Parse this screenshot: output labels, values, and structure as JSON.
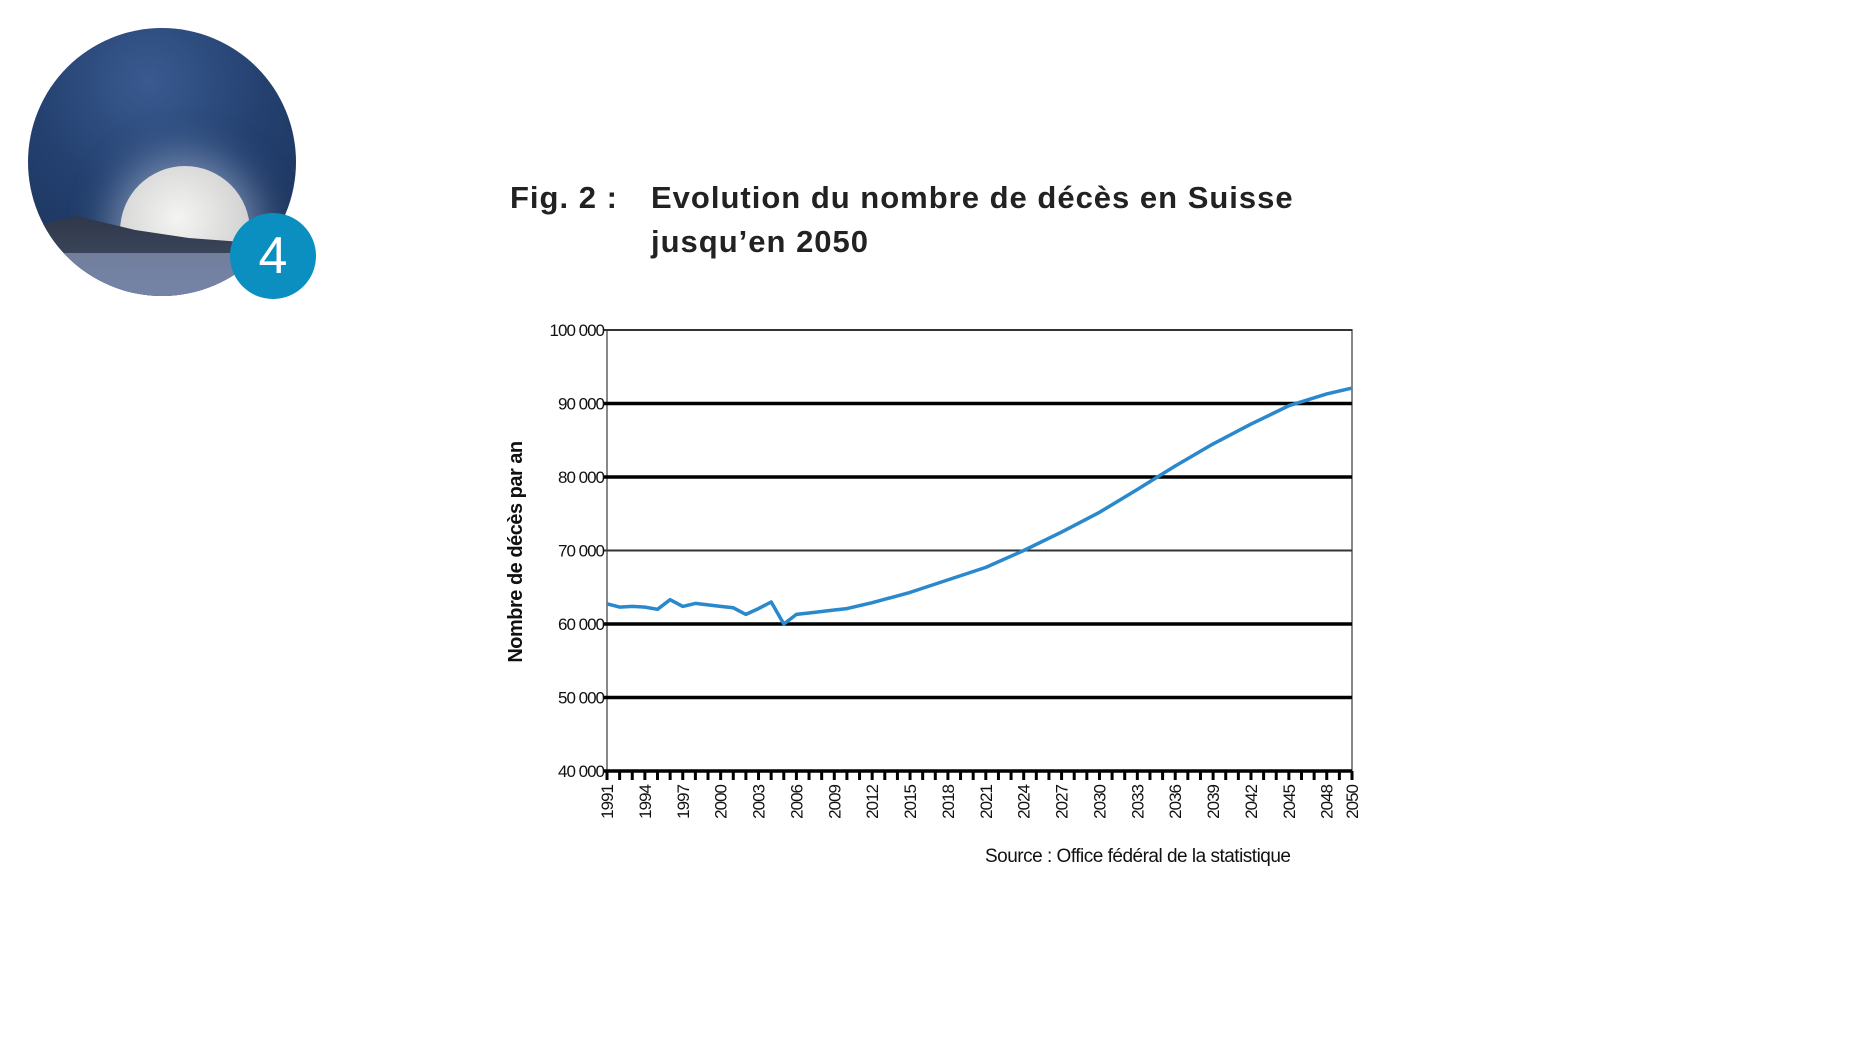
{
  "badge": {
    "number": "4",
    "color": "#0a8fc0"
  },
  "figure": {
    "label": "Fig. 2 :",
    "title_line1": "Evolution du nombre de décès en Suisse",
    "title_line2": "jusqu’en 2050"
  },
  "source": "Source : Office fédéral de la statistique",
  "chart_data": {
    "type": "line",
    "title": "Evolution du nombre de décès en Suisse jusqu’en 2050",
    "xlabel": "",
    "ylabel": "Nombre de décès par an",
    "ylim": [
      40000,
      100000
    ],
    "xlim": [
      1991,
      2050
    ],
    "yticks": [
      "40 000",
      "50 000",
      "60 000",
      "70 000",
      "80 000",
      "90 000",
      "100 000"
    ],
    "xtick_labels": [
      "1991",
      "1994",
      "1997",
      "2000",
      "2003",
      "2006",
      "2009",
      "2012",
      "2015",
      "2018",
      "2021",
      "2024",
      "2027",
      "2030",
      "2033",
      "2036",
      "2039",
      "2042",
      "2045",
      "2048",
      "2050"
    ],
    "grid": true,
    "line_color": "#2a88cc",
    "x": [
      1991,
      1992,
      1993,
      1994,
      1995,
      1996,
      1997,
      1998,
      1999,
      2000,
      2001,
      2002,
      2003,
      2004,
      2005,
      2006,
      2007,
      2008,
      2009,
      2010,
      2012,
      2015,
      2018,
      2021,
      2024,
      2027,
      2030,
      2033,
      2036,
      2039,
      2042,
      2045,
      2048,
      2050
    ],
    "values": [
      62750,
      62300,
      62400,
      62300,
      62000,
      63300,
      62400,
      62800,
      62600,
      62400,
      62200,
      61300,
      62100,
      63000,
      60000,
      61300,
      61500,
      61700,
      61900,
      62100,
      62900,
      64300,
      66000,
      67700,
      70000,
      72500,
      75200,
      78300,
      81500,
      84500,
      87200,
      89700,
      91300,
      92100
    ]
  }
}
